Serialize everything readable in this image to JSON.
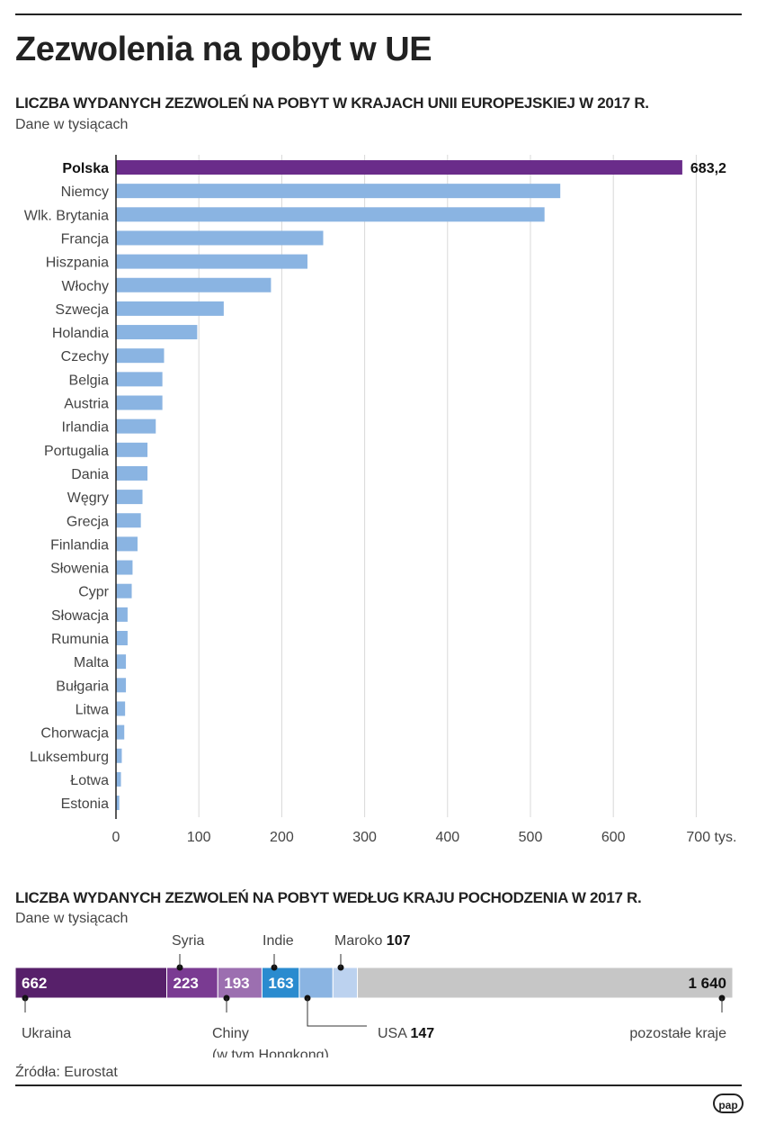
{
  "header": {
    "title": "Zezwolenia na pobyt w UE"
  },
  "chart_data": [
    {
      "type": "bar",
      "orientation": "horizontal",
      "title": "LICZBA WYDANYCH ZEZWOLEŃ NA POBYT W KRAJACH UNII EUROPEJSKIEJ W 2017 R.",
      "subtitle": "Dane w tysiącach",
      "categories": [
        "Polska",
        "Niemcy",
        "Wlk. Brytania",
        "Francja",
        "Hiszpania",
        "Włochy",
        "Szwecja",
        "Holandia",
        "Czechy",
        "Belgia",
        "Austria",
        "Irlandia",
        "Portugalia",
        "Dania",
        "Węgry",
        "Grecja",
        "Finlandia",
        "Słowenia",
        "Cypr",
        "Słowacja",
        "Rumunia",
        "Malta",
        "Bułgaria",
        "Litwa",
        "Chorwacja",
        "Luksemburg",
        "Łotwa",
        "Estonia"
      ],
      "values": [
        683.2,
        536,
        517,
        250,
        231,
        187,
        130,
        98,
        58,
        56,
        56,
        48,
        38,
        38,
        32,
        30,
        26,
        20,
        19,
        14,
        14,
        12,
        12,
        11,
        10,
        7,
        6,
        4
      ],
      "highlight": "Polska",
      "highlight_label": "683,2",
      "xlim": [
        0,
        700
      ],
      "xticks": [
        "0",
        "100",
        "200",
        "300",
        "400",
        "500",
        "600",
        "700 tys."
      ],
      "grid": true,
      "colors": {
        "highlight": "#6a2c8a",
        "default": "#8ab4e2",
        "grid": "#d8d8d8"
      }
    },
    {
      "type": "stacked-bar",
      "title": "LICZBA WYDANYCH ZEZWOLEŃ NA POBYT WEDŁUG KRAJU POCHODZENIA W 2017 R.",
      "subtitle": "Dane w tysiącach",
      "segments": [
        {
          "name": "Ukraina",
          "value": 662,
          "label": "662",
          "color": "#57206a"
        },
        {
          "name": "Syria",
          "value": 223,
          "label": "223",
          "color": "#7a3b92"
        },
        {
          "name": "Chiny",
          "name2": "(w tym Hongkong)",
          "value": 193,
          "label": "193",
          "color": "#9c6fb0"
        },
        {
          "name": "Indie",
          "value": 163,
          "label": "163",
          "color": "#2a8bcf"
        },
        {
          "name": "USA",
          "value": 147,
          "label": "147",
          "color": "#8ab4e2"
        },
        {
          "name": "Maroko",
          "value": 107,
          "label": "107",
          "color": "#bcd2ef"
        },
        {
          "name": "pozostałe kraje",
          "value": 1640,
          "label": "1 640",
          "color": "#c6c6c6"
        }
      ]
    }
  ],
  "footer": {
    "source": "Źródła: Eurostat",
    "logo": "pap"
  }
}
